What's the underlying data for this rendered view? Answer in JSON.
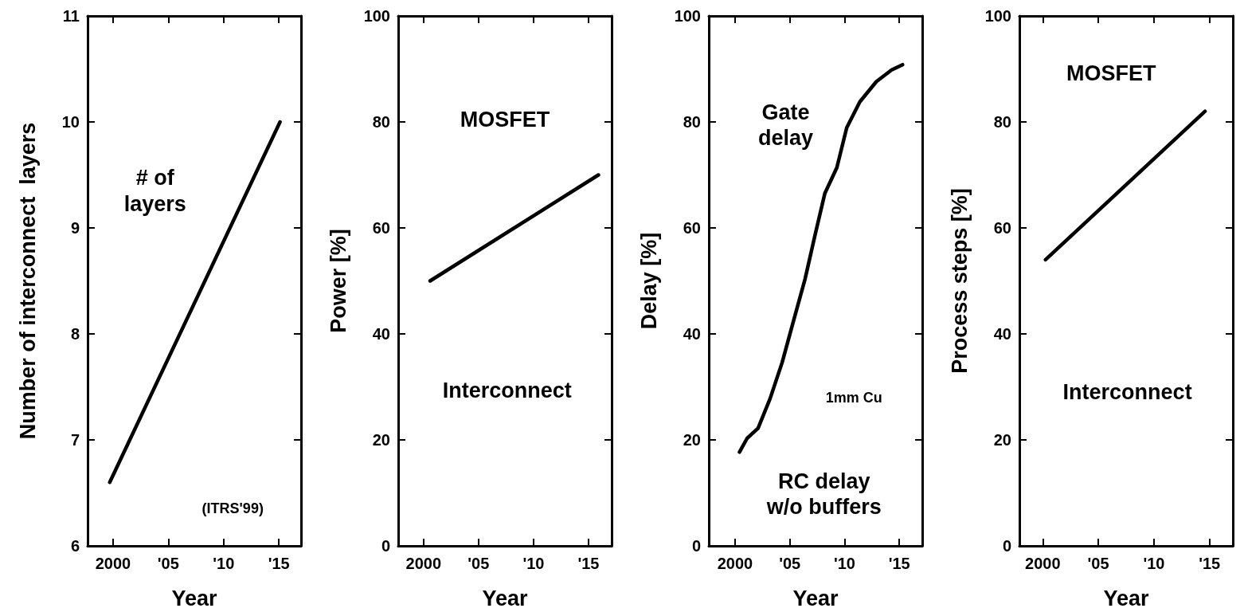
{
  "chart_data": [
    {
      "type": "line",
      "xlabel": "Year",
      "ylabel": "Number of interconnect  layers",
      "x": [
        1999.7,
        2015.1
      ],
      "values": [
        6.6,
        10
      ],
      "color": "#000000",
      "xlim": [
        1997.7,
        2017
      ],
      "xticks": [
        {
          "value": 2000,
          "label": "2000"
        },
        {
          "value": 2005,
          "label": "'05"
        },
        {
          "value": 2010,
          "label": "'10"
        },
        {
          "value": 2015,
          "label": "'15"
        }
      ],
      "ylim": [
        6,
        11
      ],
      "yticks": [
        6,
        7,
        8,
        9,
        10,
        11
      ],
      "grid": false,
      "marker": "none",
      "line_style": "solid",
      "annotations": [
        "# of\nlayers",
        "(ITRS'99)"
      ]
    },
    {
      "type": "line",
      "xlabel": "Year",
      "ylabel": "Power [%]",
      "x": [
        2000.6,
        2015.9
      ],
      "values": [
        50,
        70
      ],
      "color": "#000000",
      "xlim": [
        1997.7,
        2017.1
      ],
      "xticks": [
        {
          "value": 2000,
          "label": "2000"
        },
        {
          "value": 2005,
          "label": "'05"
        },
        {
          "value": 2010,
          "label": "'10"
        },
        {
          "value": 2015,
          "label": "'15"
        }
      ],
      "ylim": [
        0,
        100
      ],
      "yticks": [
        0,
        20,
        40,
        60,
        80,
        100
      ],
      "grid": false,
      "marker": "none",
      "line_style": "solid",
      "annotations": [
        "MOSFET",
        "Interconnect"
      ]
    },
    {
      "type": "line",
      "xlabel": "Year",
      "ylabel": "Delay [%]",
      "x": [
        2000.4,
        2001.1,
        2002.1,
        2003.2,
        2004.3,
        2005.4,
        2006.4,
        2007.3,
        2008.2,
        2009.3,
        2010.2,
        2011.4,
        2012.9,
        2014.3,
        2015.3
      ],
      "values": [
        17.7,
        20.3,
        22.2,
        27.8,
        34.6,
        42.9,
        50.4,
        58.6,
        66.5,
        71.4,
        78.9,
        83.8,
        87.6,
        89.8,
        90.8
      ],
      "color": "#000000",
      "xlim": [
        1997.6,
        2017.1
      ],
      "xticks": [
        {
          "value": 2000,
          "label": "2000"
        },
        {
          "value": 2005,
          "label": "'05"
        },
        {
          "value": 2010,
          "label": "'10"
        },
        {
          "value": 2015,
          "label": "'15"
        }
      ],
      "ylim": [
        0,
        100
      ],
      "yticks": [
        0,
        20,
        40,
        60,
        80,
        100
      ],
      "grid": false,
      "marker": "none",
      "line_style": "solid",
      "annotations": [
        "Gate\ndelay",
        "RC delay\nw/o buffers",
        "1mm Cu"
      ]
    },
    {
      "type": "line",
      "xlabel": "Year",
      "ylabel": "Process steps [%]",
      "x": [
        2000.25,
        2014.6
      ],
      "values": [
        54,
        82
      ],
      "color": "#000000",
      "xlim": [
        1997.9,
        2017.1
      ],
      "xticks": [
        {
          "value": 2000,
          "label": "2000"
        },
        {
          "value": 2005,
          "label": "'05"
        },
        {
          "value": 2010,
          "label": "'10"
        },
        {
          "value": 2015,
          "label": "'15"
        }
      ],
      "ylim": [
        0,
        100
      ],
      "yticks": [
        0,
        20,
        40,
        60,
        80,
        100
      ],
      "grid": false,
      "marker": "none",
      "line_style": "solid",
      "annotations": [
        "MOSFET",
        "Interconnect"
      ]
    }
  ]
}
